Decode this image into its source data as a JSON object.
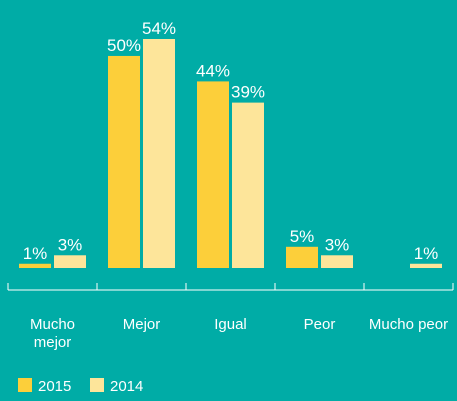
{
  "chart_data": {
    "type": "bar",
    "categories": [
      "Mucho mejor",
      "Mejor",
      "Igual",
      "Peor",
      "Mucho peor"
    ],
    "series": [
      {
        "name": "2015",
        "color": "#fccf3a",
        "values": [
          1,
          50,
          44,
          5,
          null
        ],
        "value_labels": [
          "1%",
          "50%",
          "44%",
          "5%",
          null
        ]
      },
      {
        "name": "2014",
        "color": "#fde59a",
        "values": [
          3,
          54,
          39,
          3,
          1
        ],
        "value_labels": [
          "3%",
          "54%",
          "39%",
          "3%",
          "1%"
        ]
      }
    ],
    "background": "#00aca6"
  }
}
